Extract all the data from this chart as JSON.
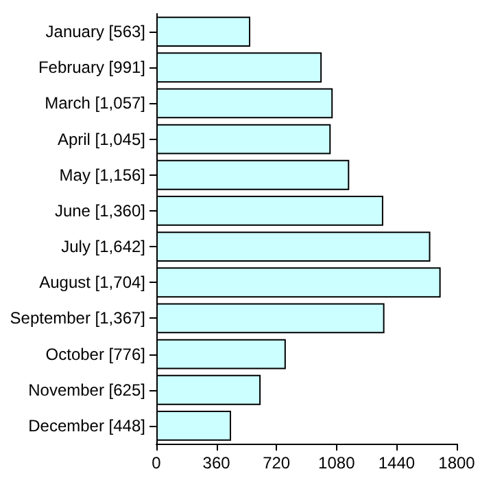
{
  "chart_data": {
    "type": "bar",
    "orientation": "horizontal",
    "categories": [
      "January [563]",
      "February [991]",
      "March [1,057]",
      "April [1,045]",
      "May [1,156]",
      "June [1,360]",
      "July [1,642]",
      "August [1,704]",
      "September [1,367]",
      "October [776]",
      "November [625]",
      "December [448]"
    ],
    "values": [
      563,
      991,
      1057,
      1045,
      1156,
      1360,
      1642,
      1704,
      1367,
      776,
      625,
      448
    ],
    "color": "#ccffff",
    "xlim": [
      0,
      1800
    ],
    "xticks": [
      0,
      360,
      720,
      1080,
      1440,
      1800
    ],
    "grid": false
  }
}
